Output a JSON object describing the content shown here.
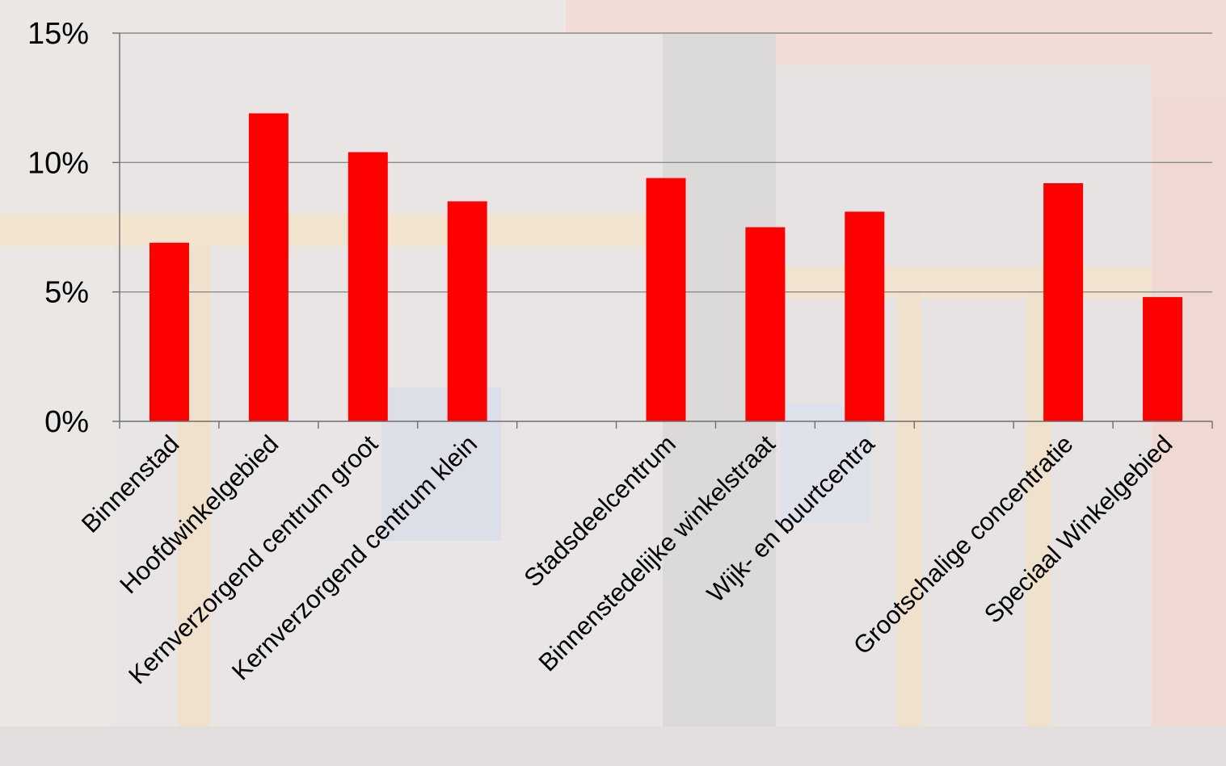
{
  "chart_data": {
    "type": "bar",
    "title": "",
    "xlabel": "",
    "ylabel": "",
    "ylim": [
      0,
      15
    ],
    "yticks": [
      0,
      5,
      10,
      15
    ],
    "ytick_labels": [
      "0%",
      "5%",
      "10%",
      "15%"
    ],
    "grid": true,
    "categories": [
      "Binnenstad",
      "Hoofdwinkelgebied",
      "Kernverzorgend centrum groot",
      "Kernverzorgend centrum klein",
      "",
      "Stadsdeelcentrum",
      "Binnenstedelijke winkelstraat",
      "Wijk- en buurtcentra",
      "",
      "Grootschalige concentratie",
      "Speciaal Winkelgebied"
    ],
    "values": [
      6.9,
      11.9,
      10.4,
      8.5,
      null,
      9.4,
      7.5,
      8.1,
      null,
      9.2,
      4.8
    ],
    "bar_color": "#ff0000"
  }
}
